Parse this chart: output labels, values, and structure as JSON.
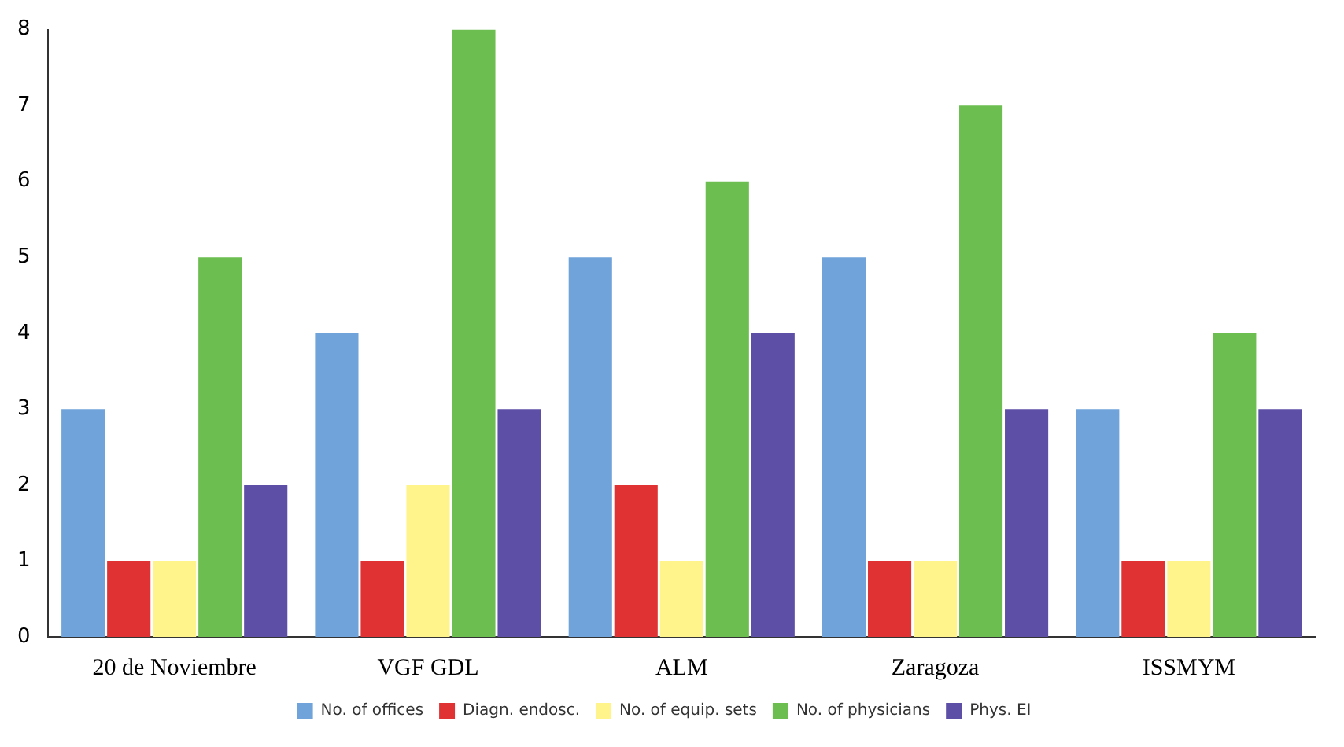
{
  "chart_data": {
    "type": "bar",
    "categories": [
      "20 de Noviembre",
      "VGF GDL",
      "ALM",
      "Zaragoza",
      "ISSMYM"
    ],
    "series": [
      {
        "name": "No. of offices",
        "color": "#6fa3da",
        "values": [
          3,
          4,
          5,
          5,
          3
        ]
      },
      {
        "name": "Diagn. endosc.",
        "color": "#e03232",
        "values": [
          1,
          1,
          2,
          1,
          1
        ]
      },
      {
        "name": "No. of equip. sets",
        "color": "#fff48c",
        "values": [
          1,
          2,
          1,
          1,
          1
        ]
      },
      {
        "name": "No. of physicians",
        "color": "#6cbe50",
        "values": [
          5,
          8,
          6,
          7,
          4
        ]
      },
      {
        "name": "Phys. EI",
        "color": "#5e4fa6",
        "values": [
          2,
          3,
          4,
          3,
          3
        ]
      }
    ],
    "ylim": [
      0,
      8
    ],
    "yticks": [
      0,
      1,
      2,
      3,
      4,
      5,
      6,
      7,
      8
    ],
    "grid": false,
    "legend": "bottom"
  }
}
